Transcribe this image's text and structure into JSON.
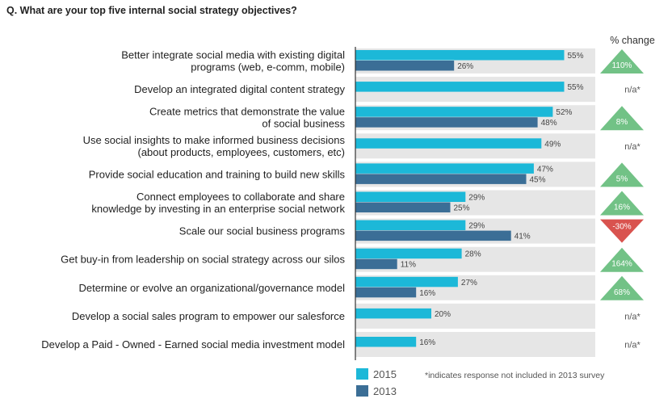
{
  "question": "Q. What are your top five internal social strategy objectives?",
  "change_header": "% change",
  "footnote": "*indicates response not included in 2013 survey",
  "colors": {
    "series_2015": "#1cb8d8",
    "series_2013": "#3b6e96",
    "row_bg": "#e6e6e6",
    "change_up": "#72c286",
    "change_down": "#d9534f"
  },
  "chart_data": {
    "type": "bar",
    "orientation": "horizontal",
    "categories": [
      [
        "Better integrate social media with existing digital",
        "programs (web, e-comm, mobile)"
      ],
      [
        "Develop an integrated digital content strategy"
      ],
      [
        "Create metrics that demonstrate the value",
        "of social business"
      ],
      [
        "Use social insights to make informed business decisions",
        "(about products, employees, customers, etc)"
      ],
      [
        "Provide social education and training to build new skills"
      ],
      [
        "Connect employees to collaborate and share",
        "knowledge by investing in an enterprise social network"
      ],
      [
        "Scale our social business programs"
      ],
      [
        "Get buy-in from leadership on social strategy across our silos"
      ],
      [
        "Determine or evolve an organizational/governance model"
      ],
      [
        "Develop a social sales program to empower our salesforce"
      ],
      [
        "Develop a Paid - Owned - Earned social media investment model"
      ]
    ],
    "series": [
      {
        "name": "2015",
        "values": [
          55,
          55,
          52,
          49,
          47,
          29,
          29,
          28,
          27,
          20,
          16
        ]
      },
      {
        "name": "2013",
        "values": [
          26,
          null,
          48,
          null,
          45,
          25,
          41,
          11,
          16,
          null,
          null
        ]
      }
    ],
    "value_suffix": "%",
    "xlim": [
      0,
      100
    ],
    "change": [
      {
        "text": "110%",
        "dir": "up"
      },
      {
        "text": "n/a*",
        "dir": "na"
      },
      {
        "text": "8%",
        "dir": "up"
      },
      {
        "text": "n/a*",
        "dir": "na"
      },
      {
        "text": "5%",
        "dir": "up"
      },
      {
        "text": "16%",
        "dir": "up"
      },
      {
        "text": "-30%",
        "dir": "down"
      },
      {
        "text": "164%",
        "dir": "up"
      },
      {
        "text": "68%",
        "dir": "up"
      },
      {
        "text": "n/a*",
        "dir": "na"
      },
      {
        "text": "n/a*",
        "dir": "na"
      }
    ],
    "legend": [
      "2015",
      "2013"
    ],
    "legend_position": "bottom"
  }
}
